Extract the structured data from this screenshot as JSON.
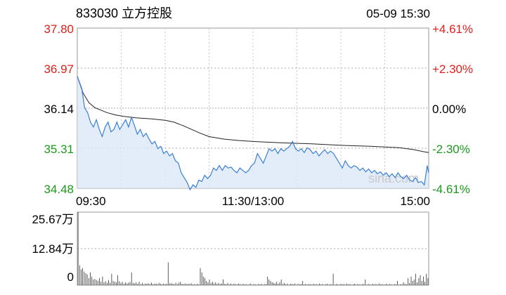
{
  "header": {
    "title": "833030 立方控股",
    "datetime": "05-09 15:30"
  },
  "watermark": "sina.com",
  "colors": {
    "up": "#e0201b",
    "down": "#1a9a1a",
    "neutral": "#000000",
    "price_line": "#3a7fd5",
    "avg_line": "#222222",
    "fill": "#dbe8f7",
    "grid": "#aaaaaa",
    "volume": "#333333"
  },
  "chart_data": [
    {
      "type": "line",
      "name": "intraday",
      "y_ticks_left": [
        {
          "label": "37.80",
          "value": 37.8,
          "color": "up"
        },
        {
          "label": "36.97",
          "value": 36.97,
          "color": "up"
        },
        {
          "label": "36.14",
          "value": 36.14,
          "color": "neutral"
        },
        {
          "label": "35.31",
          "value": 35.31,
          "color": "down"
        },
        {
          "label": "34.48",
          "value": 34.48,
          "color": "down"
        }
      ],
      "y_ticks_right": [
        {
          "label": "+4.61%",
          "color": "up"
        },
        {
          "label": "+2.30%",
          "color": "up"
        },
        {
          "label": "0.00%",
          "color": "neutral"
        },
        {
          "label": "-2.30%",
          "color": "down"
        },
        {
          "label": "-4.61%",
          "color": "down"
        }
      ],
      "x_ticks": [
        {
          "label": "09:30",
          "value": 0
        },
        {
          "label": "11:30/13:00",
          "value": 120
        },
        {
          "label": "15:00",
          "value": 240
        }
      ],
      "ylim": [
        34.48,
        37.8
      ],
      "xlim": [
        0,
        240
      ],
      "prev_close": 36.14,
      "price": [
        [
          0,
          36.8
        ],
        [
          3,
          36.55
        ],
        [
          5,
          36.15
        ],
        [
          7,
          36.05
        ],
        [
          9,
          35.85
        ],
        [
          11,
          35.75
        ],
        [
          13,
          35.9
        ],
        [
          15,
          35.7
        ],
        [
          17,
          35.55
        ],
        [
          19,
          35.75
        ],
        [
          21,
          35.85
        ],
        [
          23,
          35.65
        ],
        [
          25,
          35.7
        ],
        [
          27,
          35.85
        ],
        [
          29,
          35.7
        ],
        [
          31,
          35.8
        ],
        [
          33,
          35.9
        ],
        [
          35,
          35.75
        ],
        [
          37,
          35.95
        ],
        [
          39,
          35.78
        ],
        [
          41,
          35.6
        ],
        [
          43,
          35.7
        ],
        [
          45,
          35.55
        ],
        [
          47,
          35.62
        ],
        [
          49,
          35.5
        ],
        [
          51,
          35.4
        ],
        [
          53,
          35.45
        ],
        [
          55,
          35.3
        ],
        [
          57,
          35.35
        ],
        [
          59,
          35.2
        ],
        [
          61,
          35.25
        ],
        [
          63,
          35.15
        ],
        [
          65,
          35.2
        ],
        [
          67,
          35.05
        ],
        [
          69,
          35.0
        ],
        [
          71,
          34.8
        ],
        [
          73,
          34.7
        ],
        [
          75,
          34.6
        ],
        [
          77,
          34.45
        ],
        [
          79,
          34.55
        ],
        [
          81,
          34.5
        ],
        [
          83,
          34.65
        ],
        [
          85,
          34.62
        ],
        [
          87,
          34.75
        ],
        [
          89,
          34.68
        ],
        [
          91,
          34.75
        ],
        [
          93,
          34.9
        ],
        [
          95,
          34.85
        ],
        [
          97,
          34.95
        ],
        [
          99,
          34.85
        ],
        [
          101,
          34.95
        ],
        [
          103,
          34.9
        ],
        [
          105,
          34.92
        ],
        [
          107,
          34.85
        ],
        [
          109,
          34.8
        ],
        [
          111,
          34.9
        ],
        [
          113,
          34.85
        ],
        [
          115,
          34.8
        ],
        [
          117,
          34.85
        ],
        [
          119,
          34.95
        ],
        [
          121,
          35.0
        ],
        [
          123,
          35.2
        ],
        [
          125,
          35.1
        ],
        [
          127,
          35.0
        ],
        [
          129,
          35.15
        ],
        [
          131,
          35.3
        ],
        [
          133,
          35.25
        ],
        [
          135,
          35.3
        ],
        [
          137,
          35.2
        ],
        [
          139,
          35.3
        ],
        [
          141,
          35.25
        ],
        [
          143,
          35.3
        ],
        [
          145,
          35.35
        ],
        [
          147,
          35.45
        ],
        [
          149,
          35.3
        ],
        [
          151,
          35.25
        ],
        [
          153,
          35.3
        ],
        [
          155,
          35.22
        ],
        [
          157,
          35.32
        ],
        [
          159,
          35.28
        ],
        [
          161,
          35.2
        ],
        [
          163,
          35.25
        ],
        [
          165,
          35.15
        ],
        [
          167,
          35.22
        ],
        [
          169,
          35.28
        ],
        [
          171,
          35.2
        ],
        [
          173,
          35.25
        ],
        [
          175,
          35.2
        ],
        [
          177,
          35.1
        ],
        [
          179,
          35.0
        ],
        [
          181,
          34.9
        ],
        [
          183,
          35.05
        ],
        [
          185,
          34.95
        ],
        [
          187,
          34.9
        ],
        [
          189,
          34.95
        ],
        [
          191,
          34.92
        ],
        [
          193,
          34.85
        ],
        [
          195,
          34.9
        ],
        [
          197,
          34.82
        ],
        [
          199,
          34.88
        ],
        [
          201,
          34.8
        ],
        [
          203,
          34.85
        ],
        [
          205,
          34.78
        ],
        [
          207,
          34.82
        ],
        [
          209,
          34.75
        ],
        [
          211,
          34.8
        ],
        [
          213,
          34.72
        ],
        [
          215,
          34.78
        ],
        [
          217,
          34.7
        ],
        [
          219,
          34.8
        ],
        [
          221,
          34.72
        ],
        [
          223,
          34.68
        ],
        [
          225,
          34.75
        ],
        [
          227,
          34.65
        ],
        [
          229,
          34.62
        ],
        [
          231,
          34.7
        ],
        [
          233,
          34.6
        ],
        [
          235,
          34.62
        ],
        [
          237,
          34.55
        ],
        [
          239,
          34.95
        ],
        [
          240,
          34.8
        ]
      ],
      "average": [
        [
          0,
          36.8
        ],
        [
          4,
          36.45
        ],
        [
          8,
          36.25
        ],
        [
          12,
          36.15
        ],
        [
          16,
          36.1
        ],
        [
          20,
          36.05
        ],
        [
          26,
          36.0
        ],
        [
          32,
          35.97
        ],
        [
          40,
          35.94
        ],
        [
          50,
          35.92
        ],
        [
          60,
          35.89
        ],
        [
          66,
          35.85
        ],
        [
          72,
          35.78
        ],
        [
          78,
          35.7
        ],
        [
          84,
          35.62
        ],
        [
          90,
          35.55
        ],
        [
          100,
          35.5
        ],
        [
          110,
          35.47
        ],
        [
          120,
          35.45
        ],
        [
          140,
          35.42
        ],
        [
          160,
          35.4
        ],
        [
          180,
          35.37
        ],
        [
          200,
          35.35
        ],
        [
          220,
          35.32
        ],
        [
          230,
          35.28
        ],
        [
          236,
          35.24
        ],
        [
          240,
          35.22
        ]
      ]
    },
    {
      "type": "bar",
      "name": "volume",
      "y_ticks": [
        {
          "label": "25.67万",
          "value": 256700
        },
        {
          "label": "12.84万",
          "value": 128400
        },
        {
          "label": "0",
          "value": 0
        }
      ],
      "ylim": [
        0,
        256700
      ],
      "values": [
        256700,
        70000,
        55000,
        60000,
        48000,
        42000,
        38000,
        25000,
        45000,
        30000,
        20000,
        22000,
        18000,
        15000,
        25000,
        12000,
        30000,
        10000,
        14000,
        8000,
        18000,
        9000,
        40000,
        15000,
        12000,
        10000,
        35000,
        14000,
        8000,
        12000,
        5000,
        10000,
        6000,
        9000,
        11000,
        45000,
        8000,
        6000,
        10000,
        5000,
        12000,
        4000,
        8000,
        3000,
        6000,
        5000,
        7000,
        4000,
        9000,
        3000,
        5000,
        6000,
        4000,
        8000,
        5000,
        3000,
        6000,
        4000,
        5000,
        80000,
        6000,
        7000,
        5000,
        4000,
        9000,
        3000,
        8000,
        12000,
        5000,
        4000,
        6000,
        3000,
        5000,
        4000,
        7000,
        3000,
        4000,
        2000,
        5000,
        3000,
        60000,
        45000,
        30000,
        25000,
        15000,
        10000,
        20000,
        8000,
        12000,
        6000,
        10000,
        5000,
        8000,
        4000,
        6000,
        20000,
        5000,
        4000,
        8000,
        3000,
        6000,
        2000,
        5000,
        4000,
        3000,
        6000,
        4000,
        2000,
        5000,
        3000,
        4000,
        2000,
        3000,
        6000,
        2000,
        4000,
        3000,
        2000,
        4000,
        3000,
        5000,
        2000,
        4000,
        3000,
        30000,
        20000,
        15000,
        10000,
        8000,
        6000,
        12000,
        5000,
        10000,
        20000,
        4000,
        8000,
        3000,
        6000,
        2000,
        5000,
        4000,
        3000,
        6000,
        2000,
        5000,
        3000,
        4000,
        15000,
        3000,
        5000,
        2000,
        4000,
        3000,
        2000,
        5000,
        3000,
        4000,
        2000,
        6000,
        3000,
        4000,
        2000,
        3000,
        5000,
        2000,
        4000,
        3000,
        40000,
        2000,
        4000,
        3000,
        2000,
        5000,
        3000,
        4000,
        2000,
        6000,
        3000,
        4000,
        2000,
        3000,
        5000,
        2000,
        4000,
        3000,
        2000,
        4000,
        3000,
        20000,
        2000,
        4000,
        3000,
        2000,
        5000,
        3000,
        4000,
        2000,
        6000,
        3000,
        4000,
        2000,
        3000,
        5000,
        2000,
        4000,
        3000,
        2000,
        4000,
        3000,
        15000,
        2000,
        4000,
        3000,
        10000,
        5000,
        3000,
        25000,
        8000,
        30000,
        15000,
        20000,
        40000,
        10000,
        25000,
        35000,
        15000,
        30000,
        12000,
        40000,
        25000
      ]
    }
  ]
}
